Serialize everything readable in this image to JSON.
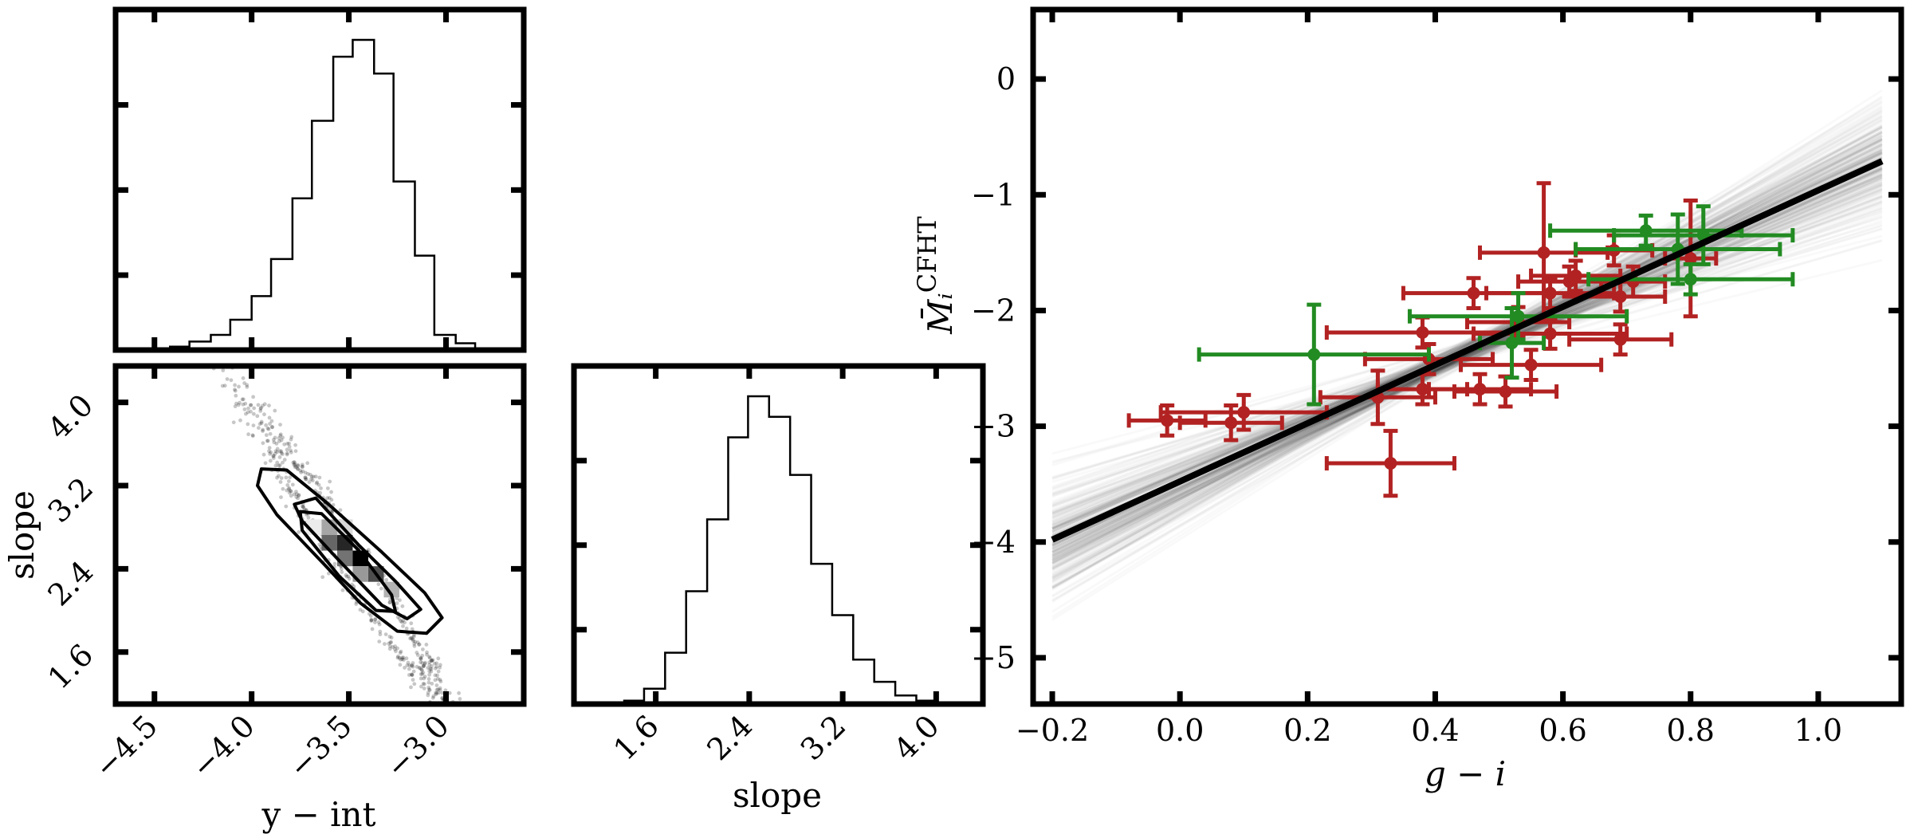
{
  "chart_data": [
    {
      "id": "intercept-hist",
      "type": "histogram",
      "title": "",
      "xlabel": "",
      "ylabel": "",
      "xlim": [
        -4.7,
        -2.6
      ],
      "bins": [
        {
          "x0": -4.53,
          "x1": -4.42,
          "count": 0.005
        },
        {
          "x0": -4.42,
          "x1": -4.32,
          "count": 0.01
        },
        {
          "x0": -4.32,
          "x1": -4.21,
          "count": 0.025
        },
        {
          "x0": -4.21,
          "x1": -4.11,
          "count": 0.045
        },
        {
          "x0": -4.11,
          "x1": -4.0,
          "count": 0.09
        },
        {
          "x0": -4.0,
          "x1": -3.9,
          "count": 0.16
        },
        {
          "x0": -3.9,
          "x1": -3.79,
          "count": 0.27
        },
        {
          "x0": -3.79,
          "x1": -3.69,
          "count": 0.45
        },
        {
          "x0": -3.69,
          "x1": -3.58,
          "count": 0.68
        },
        {
          "x0": -3.58,
          "x1": -3.48,
          "count": 0.87
        },
        {
          "x0": -3.48,
          "x1": -3.37,
          "count": 0.92
        },
        {
          "x0": -3.37,
          "x1": -3.27,
          "count": 0.82
        },
        {
          "x0": -3.27,
          "x1": -3.16,
          "count": 0.5
        },
        {
          "x0": -3.16,
          "x1": -3.06,
          "count": 0.28
        },
        {
          "x0": -3.06,
          "x1": -2.95,
          "count": 0.045
        },
        {
          "x0": -2.95,
          "x1": -2.85,
          "count": 0.02
        },
        {
          "x0": -2.85,
          "x1": -2.74,
          "count": 0.005
        }
      ]
    },
    {
      "id": "slope-vs-intercept",
      "type": "scatter",
      "title": "",
      "xlabel": "y − int",
      "ylabel": "slope",
      "xlim": [
        -4.7,
        -2.6
      ],
      "ylim": [
        1.1,
        4.35
      ],
      "xticks": [
        "−4.5",
        "−4.0",
        "−3.5",
        "−3.0"
      ],
      "yticks": [
        "1.6",
        "2.4",
        "3.2",
        "4.0"
      ],
      "relation": "slope ≈ 2.45 − 2.8 × (y-int + 3.48)",
      "center": {
        "x": -3.48,
        "y": 2.45
      },
      "contours": [
        {
          "level": "inner",
          "points": [
            [
              -3.75,
              2.95
            ],
            [
              -3.64,
              2.93
            ],
            [
              -3.45,
              2.58
            ],
            [
              -3.28,
              2.15
            ],
            [
              -3.26,
              1.99
            ],
            [
              -3.36,
              2.0
            ],
            [
              -3.55,
              2.33
            ],
            [
              -3.74,
              2.77
            ]
          ]
        },
        {
          "level": "mid",
          "points": [
            [
              -3.67,
              3.08
            ],
            [
              -3.78,
              3.02
            ],
            [
              -3.74,
              2.86
            ],
            [
              -3.55,
              2.48
            ],
            [
              -3.33,
              2.05
            ],
            [
              -3.2,
              1.92
            ],
            [
              -3.13,
              2.01
            ],
            [
              -3.26,
              2.28
            ],
            [
              -3.45,
              2.63
            ]
          ]
        },
        {
          "level": "outer",
          "points": [
            [
              -3.95,
              3.36
            ],
            [
              -3.82,
              3.35
            ],
            [
              -3.61,
              3.03
            ],
            [
              -3.33,
              2.56
            ],
            [
              -3.11,
              2.17
            ],
            [
              -3.02,
              1.93
            ],
            [
              -3.1,
              1.78
            ],
            [
              -3.25,
              1.8
            ],
            [
              -3.44,
              2.07
            ],
            [
              -3.62,
              2.43
            ],
            [
              -3.87,
              2.92
            ],
            [
              -3.97,
              3.2
            ]
          ]
        }
      ],
      "density_bins": [
        {
          "x": -3.68,
          "y": 2.8,
          "w": 0.08
        },
        {
          "x": -3.6,
          "y": 2.8,
          "w": 0.35
        },
        {
          "x": -3.6,
          "y": 2.65,
          "w": 0.6
        },
        {
          "x": -3.52,
          "y": 2.65,
          "w": 0.85
        },
        {
          "x": -3.52,
          "y": 2.5,
          "w": 0.55
        },
        {
          "x": -3.44,
          "y": 2.5,
          "w": 1.0
        },
        {
          "x": -3.36,
          "y": 2.35,
          "w": 0.7
        },
        {
          "x": -3.28,
          "y": 2.2,
          "w": 0.3
        },
        {
          "x": -3.44,
          "y": 2.35,
          "w": 0.4
        },
        {
          "x": -3.52,
          "y": 2.8,
          "w": 0.15
        }
      ]
    },
    {
      "id": "slope-hist",
      "type": "histogram",
      "title": "",
      "xlabel": "slope",
      "ylabel": "",
      "xlim": [
        0.9,
        4.4
      ],
      "xticks": [
        "1.6",
        "2.4",
        "3.2",
        "4.0"
      ],
      "bins": [
        {
          "x0": 1.16,
          "x1": 1.33,
          "count": 0.005
        },
        {
          "x0": 1.33,
          "x1": 1.5,
          "count": 0.01
        },
        {
          "x0": 1.5,
          "x1": 1.68,
          "count": 0.045
        },
        {
          "x0": 1.68,
          "x1": 1.86,
          "count": 0.15
        },
        {
          "x0": 1.86,
          "x1": 2.04,
          "count": 0.33
        },
        {
          "x0": 2.04,
          "x1": 2.22,
          "count": 0.54
        },
        {
          "x0": 2.22,
          "x1": 2.39,
          "count": 0.78
        },
        {
          "x0": 2.39,
          "x1": 2.57,
          "count": 0.9
        },
        {
          "x0": 2.57,
          "x1": 2.75,
          "count": 0.84
        },
        {
          "x0": 2.75,
          "x1": 2.93,
          "count": 0.67
        },
        {
          "x0": 2.93,
          "x1": 3.11,
          "count": 0.41
        },
        {
          "x0": 3.11,
          "x1": 3.29,
          "count": 0.26
        },
        {
          "x0": 3.29,
          "x1": 3.47,
          "count": 0.13
        },
        {
          "x0": 3.47,
          "x1": 3.65,
          "count": 0.065
        },
        {
          "x0": 3.65,
          "x1": 3.83,
          "count": 0.025
        },
        {
          "x0": 3.83,
          "x1": 4.0,
          "count": 0.01
        },
        {
          "x0": 4.0,
          "x1": 4.18,
          "count": 0.005
        }
      ]
    },
    {
      "id": "magnitude-vs-color",
      "type": "scatter",
      "title": "",
      "xlabel": "g − i",
      "ylabel": "M̄ᵢ",
      "ylabel_sup": "CFHT",
      "xlim": [
        -0.23,
        1.13
      ],
      "ylim": [
        -5.4,
        0.6
      ],
      "xticks": [
        "−0.2",
        "0.0",
        "0.2",
        "0.4",
        "0.6",
        "0.8",
        "1.0"
      ],
      "yticks": [
        "0",
        "−1",
        "−2",
        "−3",
        "−4",
        "−5"
      ],
      "best_fit": {
        "x": [
          -0.2,
          1.1
        ],
        "y": [
          -3.98,
          -0.71
        ]
      },
      "posterior_lines": {
        "count": 250,
        "pivot_x": 0.45,
        "pivot_y": -2.36,
        "slope_mean": 2.5,
        "slope_sd": 0.35
      },
      "series": [
        {
          "name": "red",
          "color": "#b22222",
          "points": [
            {
              "x": -0.02,
              "y": -2.95,
              "xerr": 0.06,
              "yerr": 0.13
            },
            {
              "x": 0.08,
              "y": -2.97,
              "xerr": 0.08,
              "yerr": 0.15
            },
            {
              "x": 0.1,
              "y": -2.88,
              "xerr": 0.13,
              "yerr": 0.15
            },
            {
              "x": 0.31,
              "y": -2.75,
              "xerr": 0.09,
              "yerr": 0.23
            },
            {
              "x": 0.33,
              "y": -3.32,
              "xerr": 0.1,
              "yerr": 0.28
            },
            {
              "x": 0.38,
              "y": -2.19,
              "xerr": 0.15,
              "yerr": 0.13
            },
            {
              "x": 0.39,
              "y": -2.42,
              "xerr": 0.1,
              "yerr": 0.13
            },
            {
              "x": 0.38,
              "y": -2.68,
              "xerr": 0.07,
              "yerr": 0.13
            },
            {
              "x": 0.46,
              "y": -1.85,
              "xerr": 0.11,
              "yerr": 0.13
            },
            {
              "x": 0.47,
              "y": -2.68,
              "xerr": 0.08,
              "yerr": 0.13
            },
            {
              "x": 0.51,
              "y": -2.7,
              "xerr": 0.08,
              "yerr": 0.13
            },
            {
              "x": 0.53,
              "y": -2.1,
              "xerr": 0.08,
              "yerr": 0.13
            },
            {
              "x": 0.55,
              "y": -2.47,
              "xerr": 0.11,
              "yerr": 0.13
            },
            {
              "x": 0.57,
              "y": -1.5,
              "xerr": 0.1,
              "yerr": 0.6
            },
            {
              "x": 0.58,
              "y": -2.2,
              "xerr": 0.12,
              "yerr": 0.13
            },
            {
              "x": 0.58,
              "y": -1.85,
              "xerr": 0.1,
              "yerr": 0.13
            },
            {
              "x": 0.61,
              "y": -1.75,
              "xerr": 0.08,
              "yerr": 0.13
            },
            {
              "x": 0.62,
              "y": -1.7,
              "xerr": 0.07,
              "yerr": 0.13
            },
            {
              "x": 0.68,
              "y": -1.48,
              "xerr": 0.06,
              "yerr": 0.13
            },
            {
              "x": 0.69,
              "y": -1.88,
              "xerr": 0.07,
              "yerr": 0.13
            },
            {
              "x": 0.69,
              "y": -2.25,
              "xerr": 0.08,
              "yerr": 0.13
            },
            {
              "x": 0.71,
              "y": -1.75,
              "xerr": 0.05,
              "yerr": 0.13
            },
            {
              "x": 0.8,
              "y": -1.55,
              "xerr": 0.04,
              "yerr": 0.5
            }
          ]
        },
        {
          "name": "green",
          "color": "#228b22",
          "points": [
            {
              "x": 0.21,
              "y": -2.38,
              "xerr": 0.18,
              "yerr": 0.43
            },
            {
              "x": 0.52,
              "y": -2.28,
              "xerr": 0.05,
              "yerr": 0.3
            },
            {
              "x": 0.53,
              "y": -2.05,
              "xerr": 0.17,
              "yerr": 0.2
            },
            {
              "x": 0.73,
              "y": -1.31,
              "xerr": 0.15,
              "yerr": 0.13
            },
            {
              "x": 0.78,
              "y": -1.47,
              "xerr": 0.16,
              "yerr": 0.3
            },
            {
              "x": 0.8,
              "y": -1.73,
              "xerr": 0.16,
              "yerr": 0.13
            },
            {
              "x": 0.82,
              "y": -1.35,
              "xerr": 0.14,
              "yerr": 0.25
            }
          ]
        }
      ]
    }
  ]
}
